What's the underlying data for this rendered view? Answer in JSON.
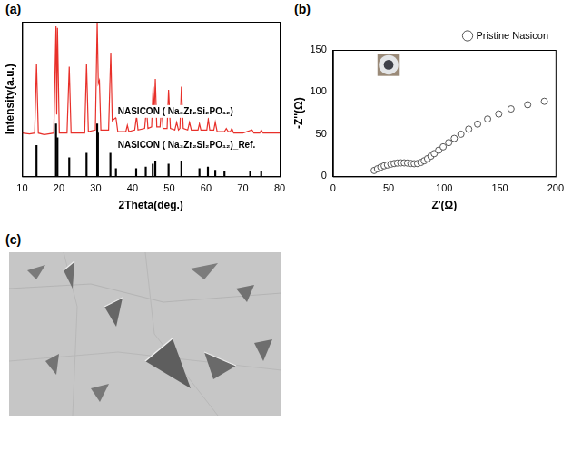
{
  "chart_data": [
    {
      "type": "line",
      "label": "(a)",
      "x_label": "2Theta(deg.)",
      "y_label": "Intensity(a.u.)",
      "xlim": [
        10,
        80
      ],
      "xticks": [
        10,
        20,
        30,
        40,
        50,
        60,
        70,
        80
      ],
      "ylim": [
        0,
        100
      ],
      "grid": false,
      "tick_labels": "x",
      "annotations": [
        {
          "text": "NASICON ( Na₃Zr₂Si₂PO₁₂)",
          "x": 36,
          "y": 42
        },
        {
          "text": "NASICON ( Na₃Zr₂Si₂PO₁₂)_Ref.",
          "x": 36,
          "y": 20
        }
      ],
      "series": [
        {
          "type": "line",
          "color": "#e8302a",
          "x": [
            10,
            12,
            13.4,
            13.9,
            14.4,
            16,
            18.6,
            19.2,
            19.4,
            19.6,
            20.1,
            22.2,
            22.8,
            23.3,
            25,
            27.0,
            27.5,
            28.0,
            29.9,
            30.4,
            30.7,
            31.0,
            31.4,
            33.5,
            34.1,
            34.5,
            35.5,
            36,
            38.2,
            38.6,
            39,
            40.6,
            41.1,
            41.5,
            43.3,
            43.8,
            44.2,
            45.2,
            45.6,
            45.9,
            46.2,
            46.6,
            47.5,
            47.9,
            48.3,
            49.4,
            49.8,
            50.3,
            51.5,
            52.0,
            52.5,
            52.9,
            53.3,
            53.8,
            55,
            55.5,
            56,
            57.8,
            58.2,
            58.6,
            60.2,
            60.6,
            61,
            62.1,
            62.5,
            63,
            65,
            65.5,
            66,
            66.6,
            67,
            67.5,
            70,
            72.5,
            73,
            74.6,
            75,
            75.5,
            78,
            80
          ],
          "values": [
            28,
            27.5,
            28,
            73,
            28,
            27,
            28,
            97,
            40,
            96,
            28,
            28,
            71,
            28,
            28,
            28,
            73,
            29,
            30,
            100,
            60,
            62,
            30,
            30,
            80,
            36,
            38,
            29,
            29,
            33,
            29,
            30,
            39,
            30,
            31,
            44,
            31,
            32,
            58,
            40,
            63,
            32,
            32,
            46,
            31,
            31,
            56,
            31,
            30,
            35,
            30,
            31,
            58,
            31,
            30,
            35,
            30,
            30,
            34,
            30,
            30,
            37,
            30,
            30,
            35,
            29,
            29,
            31,
            29,
            29,
            31,
            28,
            28,
            30,
            28,
            28,
            30,
            28,
            28,
            28
          ]
        },
        {
          "type": "bar",
          "color": "#000000",
          "x": [
            13.9,
            19.2,
            19.6,
            22.8,
            27.5,
            30.4,
            30.6,
            34.0,
            35.5,
            41.0,
            43.6,
            45.5,
            46.2,
            49.8,
            53.3,
            58.2,
            60.5,
            62.5,
            65.0,
            72.0,
            75.0
          ],
          "values": [
            20,
            34,
            25,
            12,
            15,
            34,
            28,
            15,
            5,
            5,
            6,
            8,
            10,
            8,
            10,
            5,
            6,
            4,
            3,
            3,
            3
          ]
        }
      ]
    },
    {
      "type": "scatter",
      "label": "(b)",
      "x_label": "Z'(Ω)",
      "y_label": "-Z''(Ω)",
      "xlim": [
        0,
        200
      ],
      "xticks": [
        0,
        50,
        100,
        150,
        200
      ],
      "ylim": [
        0,
        150
      ],
      "yticks": [
        0,
        50,
        100,
        150
      ],
      "grid": false,
      "legend": "top-right",
      "series": [
        {
          "name": "Pristine Nasicon",
          "color": "#555555",
          "marker": "circle",
          "x": [
            37,
            40,
            43,
            46,
            49,
            52,
            55,
            58,
            61,
            64,
            67,
            70,
            73,
            76,
            79,
            82,
            85,
            88,
            91,
            95,
            99,
            104,
            109,
            115,
            122,
            130,
            139,
            149,
            160,
            175,
            190
          ],
          "values": [
            7,
            9,
            11,
            12.5,
            13.5,
            14.5,
            15.2,
            15.8,
            16,
            16,
            15.8,
            15.3,
            15,
            15.2,
            16.5,
            18.5,
            21,
            24,
            27,
            31,
            35,
            40,
            45,
            50,
            56,
            62,
            68,
            74,
            80,
            85,
            89
          ]
        }
      ]
    }
  ],
  "image_panel": {
    "label": "(c)"
  }
}
